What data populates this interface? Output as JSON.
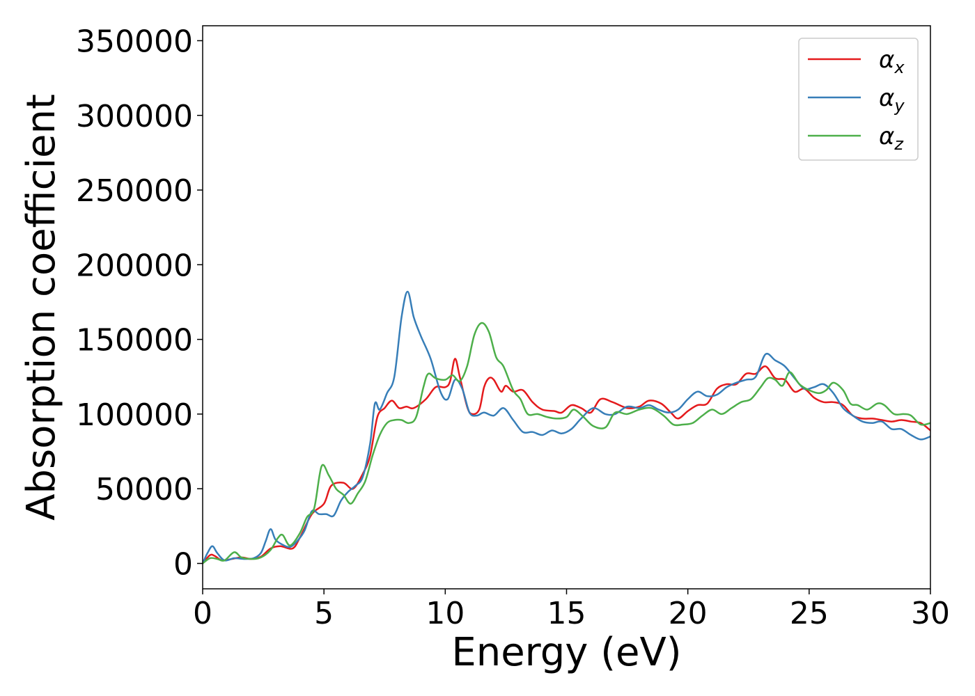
{
  "chart_data": {
    "type": "line",
    "title": "",
    "xlabel": "Energy (eV)",
    "ylabel": "Absorption coefficient",
    "xlim": [
      0,
      30
    ],
    "ylim": [
      -17000,
      360000
    ],
    "xticks": [
      0,
      5,
      10,
      15,
      20,
      25,
      30
    ],
    "yticks": [
      0,
      50000,
      100000,
      150000,
      200000,
      250000,
      300000,
      350000
    ],
    "xtick_labels": [
      "0",
      "5",
      "10",
      "15",
      "20",
      "25",
      "30"
    ],
    "ytick_labels": [
      "0",
      "50000",
      "100000",
      "150000",
      "200000",
      "250000",
      "300000",
      "350000"
    ],
    "grid": false,
    "legend": "top-right",
    "series": [
      {
        "name": "α",
        "subscript": "x",
        "color": "#e41a1c",
        "points": [
          [
            0,
            0
          ],
          [
            0.3,
            5500
          ],
          [
            0.5,
            5000
          ],
          [
            0.8,
            2000
          ],
          [
            1.2,
            3000
          ],
          [
            1.6,
            4000
          ],
          [
            2.0,
            3000
          ],
          [
            2.4,
            4500
          ],
          [
            2.8,
            10000
          ],
          [
            3.2,
            11500
          ],
          [
            3.7,
            10000
          ],
          [
            4.0,
            17000
          ],
          [
            4.5,
            33000
          ],
          [
            5.0,
            40000
          ],
          [
            5.3,
            52000
          ],
          [
            5.8,
            54000
          ],
          [
            6.2,
            50000
          ],
          [
            6.6,
            60000
          ],
          [
            6.9,
            72000
          ],
          [
            7.2,
            98000
          ],
          [
            7.5,
            104000
          ],
          [
            7.8,
            109000
          ],
          [
            8.1,
            104000
          ],
          [
            8.4,
            105000
          ],
          [
            8.7,
            104000
          ],
          [
            9.2,
            110000
          ],
          [
            9.6,
            118000
          ],
          [
            10.0,
            118000
          ],
          [
            10.2,
            122000
          ],
          [
            10.4,
            137000
          ],
          [
            10.6,
            125000
          ],
          [
            10.9,
            105000
          ],
          [
            11.1,
            100000
          ],
          [
            11.4,
            103000
          ],
          [
            11.6,
            118000
          ],
          [
            11.8,
            124000
          ],
          [
            12.0,
            123000
          ],
          [
            12.3,
            115000
          ],
          [
            12.5,
            119000
          ],
          [
            12.8,
            115000
          ],
          [
            13.2,
            116000
          ],
          [
            13.6,
            108000
          ],
          [
            14.0,
            103000
          ],
          [
            14.5,
            102000
          ],
          [
            14.8,
            101000
          ],
          [
            15.2,
            106000
          ],
          [
            15.6,
            104000
          ],
          [
            16.0,
            101000
          ],
          [
            16.4,
            110000
          ],
          [
            16.9,
            108000
          ],
          [
            17.5,
            104000
          ],
          [
            18.0,
            105000
          ],
          [
            18.4,
            109000
          ],
          [
            18.9,
            107000
          ],
          [
            19.3,
            101000
          ],
          [
            19.6,
            97000
          ],
          [
            20.0,
            102000
          ],
          [
            20.4,
            106000
          ],
          [
            20.8,
            107000
          ],
          [
            21.2,
            117000
          ],
          [
            21.6,
            120000
          ],
          [
            22.0,
            120000
          ],
          [
            22.4,
            127000
          ],
          [
            22.8,
            127000
          ],
          [
            23.2,
            132000
          ],
          [
            23.6,
            124000
          ],
          [
            24.0,
            123000
          ],
          [
            24.4,
            115000
          ],
          [
            24.8,
            117000
          ],
          [
            25.2,
            111000
          ],
          [
            25.6,
            108000
          ],
          [
            26.0,
            108000
          ],
          [
            26.4,
            106000
          ],
          [
            26.8,
            99000
          ],
          [
            27.2,
            97000
          ],
          [
            27.6,
            97000
          ],
          [
            28.0,
            96000
          ],
          [
            28.4,
            95000
          ],
          [
            28.8,
            96000
          ],
          [
            29.2,
            95000
          ],
          [
            29.6,
            94000
          ],
          [
            30.0,
            89000
          ]
        ]
      },
      {
        "name": "α",
        "subscript": "y",
        "color": "#377eb8",
        "points": [
          [
            0,
            0
          ],
          [
            0.2,
            7000
          ],
          [
            0.4,
            11500
          ],
          [
            0.6,
            7000
          ],
          [
            0.9,
            2000
          ],
          [
            1.3,
            3500
          ],
          [
            1.7,
            3000
          ],
          [
            2.1,
            3500
          ],
          [
            2.4,
            7000
          ],
          [
            2.6,
            15000
          ],
          [
            2.8,
            23000
          ],
          [
            3.0,
            16000
          ],
          [
            3.3,
            12500
          ],
          [
            3.6,
            11000
          ],
          [
            3.9,
            15000
          ],
          [
            4.2,
            22000
          ],
          [
            4.5,
            35000
          ],
          [
            4.8,
            33000
          ],
          [
            5.1,
            33000
          ],
          [
            5.4,
            32000
          ],
          [
            5.7,
            42000
          ],
          [
            6.0,
            48000
          ],
          [
            6.3,
            52000
          ],
          [
            6.6,
            58000
          ],
          [
            6.9,
            80000
          ],
          [
            7.1,
            107000
          ],
          [
            7.3,
            103000
          ],
          [
            7.6,
            114000
          ],
          [
            7.9,
            125000
          ],
          [
            8.2,
            165000
          ],
          [
            8.45,
            182000
          ],
          [
            8.7,
            165000
          ],
          [
            9.0,
            152000
          ],
          [
            9.4,
            137000
          ],
          [
            9.8,
            115000
          ],
          [
            10.1,
            110000
          ],
          [
            10.4,
            123000
          ],
          [
            10.7,
            117000
          ],
          [
            11.0,
            101000
          ],
          [
            11.3,
            99000
          ],
          [
            11.6,
            101000
          ],
          [
            12.0,
            99000
          ],
          [
            12.4,
            104000
          ],
          [
            12.8,
            96000
          ],
          [
            13.2,
            88000
          ],
          [
            13.6,
            88000
          ],
          [
            14.0,
            86000
          ],
          [
            14.4,
            89000
          ],
          [
            14.8,
            87000
          ],
          [
            15.2,
            90000
          ],
          [
            15.6,
            97000
          ],
          [
            16.1,
            104000
          ],
          [
            16.6,
            100000
          ],
          [
            17.0,
            100000
          ],
          [
            17.5,
            105000
          ],
          [
            18.0,
            104000
          ],
          [
            18.4,
            106000
          ],
          [
            18.8,
            103000
          ],
          [
            19.2,
            101000
          ],
          [
            19.6,
            103000
          ],
          [
            20.0,
            110000
          ],
          [
            20.4,
            115000
          ],
          [
            20.8,
            112000
          ],
          [
            21.2,
            113000
          ],
          [
            21.6,
            118000
          ],
          [
            22.0,
            121000
          ],
          [
            22.4,
            123000
          ],
          [
            22.8,
            125000
          ],
          [
            23.2,
            140000
          ],
          [
            23.6,
            136000
          ],
          [
            24.0,
            132000
          ],
          [
            24.4,
            124000
          ],
          [
            24.8,
            117000
          ],
          [
            25.2,
            118000
          ],
          [
            25.6,
            120000
          ],
          [
            26.0,
            114000
          ],
          [
            26.4,
            104000
          ],
          [
            26.8,
            99000
          ],
          [
            27.2,
            95000
          ],
          [
            27.6,
            94000
          ],
          [
            28.0,
            95000
          ],
          [
            28.4,
            90000
          ],
          [
            28.8,
            90000
          ],
          [
            29.2,
            86000
          ],
          [
            29.6,
            83000
          ],
          [
            30.0,
            85000
          ]
        ]
      },
      {
        "name": "α",
        "subscript": "z",
        "color": "#4daf4a",
        "points": [
          [
            0,
            0
          ],
          [
            0.3,
            3500
          ],
          [
            0.6,
            3000
          ],
          [
            0.9,
            2000
          ],
          [
            1.3,
            7500
          ],
          [
            1.6,
            4000
          ],
          [
            2.0,
            3000
          ],
          [
            2.4,
            4000
          ],
          [
            2.8,
            9000
          ],
          [
            3.1,
            17000
          ],
          [
            3.3,
            19000
          ],
          [
            3.6,
            12000
          ],
          [
            4.0,
            20000
          ],
          [
            4.3,
            31000
          ],
          [
            4.6,
            37000
          ],
          [
            4.9,
            65000
          ],
          [
            5.2,
            59000
          ],
          [
            5.5,
            50000
          ],
          [
            5.8,
            46000
          ],
          [
            6.1,
            40000
          ],
          [
            6.4,
            47000
          ],
          [
            6.7,
            55000
          ],
          [
            7.0,
            72000
          ],
          [
            7.3,
            86000
          ],
          [
            7.6,
            94000
          ],
          [
            7.9,
            96000
          ],
          [
            8.2,
            96000
          ],
          [
            8.5,
            94000
          ],
          [
            8.8,
            98000
          ],
          [
            9.1,
            118000
          ],
          [
            9.3,
            127000
          ],
          [
            9.6,
            124000
          ],
          [
            10.0,
            123000
          ],
          [
            10.3,
            126000
          ],
          [
            10.6,
            122000
          ],
          [
            10.9,
            132000
          ],
          [
            11.2,
            153000
          ],
          [
            11.5,
            161000
          ],
          [
            11.8,
            155000
          ],
          [
            12.1,
            138000
          ],
          [
            12.4,
            132000
          ],
          [
            12.8,
            116000
          ],
          [
            13.1,
            110000
          ],
          [
            13.4,
            100000
          ],
          [
            13.8,
            100000
          ],
          [
            14.2,
            98000
          ],
          [
            14.6,
            97000
          ],
          [
            15.0,
            98000
          ],
          [
            15.3,
            103000
          ],
          [
            15.7,
            98000
          ],
          [
            16.1,
            92000
          ],
          [
            16.6,
            91000
          ],
          [
            17.0,
            101000
          ],
          [
            17.5,
            100000
          ],
          [
            18.0,
            103000
          ],
          [
            18.5,
            104000
          ],
          [
            19.0,
            99000
          ],
          [
            19.4,
            93000
          ],
          [
            19.8,
            93000
          ],
          [
            20.2,
            94000
          ],
          [
            20.6,
            99000
          ],
          [
            21.0,
            103000
          ],
          [
            21.4,
            100000
          ],
          [
            21.8,
            104000
          ],
          [
            22.2,
            108000
          ],
          [
            22.6,
            110000
          ],
          [
            23.0,
            118000
          ],
          [
            23.3,
            124000
          ],
          [
            23.6,
            123000
          ],
          [
            23.9,
            119000
          ],
          [
            24.2,
            128000
          ],
          [
            24.6,
            120000
          ],
          [
            25.0,
            116000
          ],
          [
            25.4,
            114000
          ],
          [
            25.7,
            116000
          ],
          [
            26.0,
            121000
          ],
          [
            26.4,
            116000
          ],
          [
            26.7,
            107000
          ],
          [
            27.0,
            106000
          ],
          [
            27.4,
            103000
          ],
          [
            27.8,
            107000
          ],
          [
            28.1,
            106000
          ],
          [
            28.5,
            100000
          ],
          [
            28.9,
            100000
          ],
          [
            29.2,
            99000
          ],
          [
            29.6,
            93000
          ],
          [
            30.0,
            94000
          ]
        ]
      }
    ]
  }
}
